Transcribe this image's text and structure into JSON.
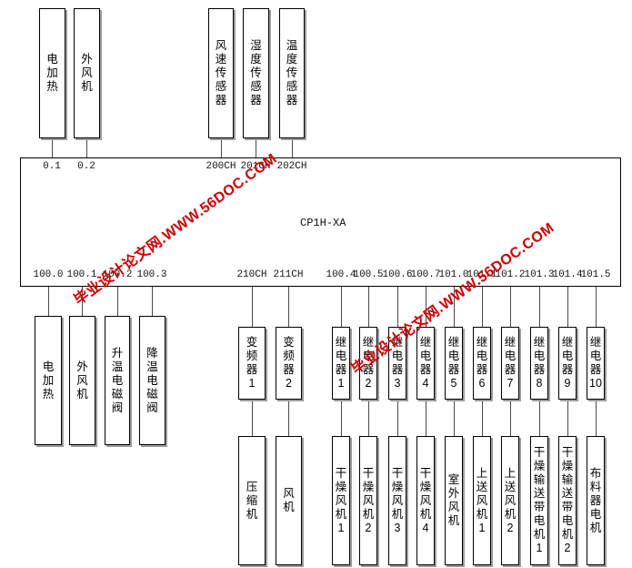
{
  "watermarks": [
    {
      "text": "毕业设计论文网.WWW.56DOC.COM"
    },
    {
      "text": "毕业设计论文网.WWW.56DOC.COM"
    }
  ],
  "colors": {
    "watermark_red": "#cc0000"
  },
  "plc": {
    "model": "CP1H-XA"
  },
  "inputs": [
    {
      "label": "电加热",
      "port": "0.1"
    },
    {
      "label": "外风机",
      "port": "0.2"
    },
    {
      "label": "风速传感器",
      "port": "200CH"
    },
    {
      "label": "湿度传感器",
      "port": "201CH"
    },
    {
      "label": "温度传感器",
      "port": "202CH"
    }
  ],
  "outputs": [
    {
      "label": "电加热",
      "port": "100.0"
    },
    {
      "label": "外风机",
      "port": "100.1"
    },
    {
      "label": "升温电磁阀",
      "port": "100.2"
    },
    {
      "label": "降温电磁阀",
      "port": "100.3"
    }
  ],
  "chains": [
    {
      "port": "210CH",
      "driver": "变频器1",
      "load": "压缩机"
    },
    {
      "port": "211CH",
      "driver": "变频器2",
      "load": "风机"
    },
    {
      "port": "100.4",
      "driver": "继电器1",
      "load": "干燥风机1"
    },
    {
      "port": "100.5",
      "driver": "继电器2",
      "load": "干燥风机2"
    },
    {
      "port": "100.6",
      "driver": "继电器3",
      "load": "干燥风机3"
    },
    {
      "port": "100.7",
      "driver": "继电器4",
      "load": "干燥风机4"
    },
    {
      "port": "101.0",
      "driver": "继电器5",
      "load": "室外风机"
    },
    {
      "port": "101.1",
      "driver": "继电器6",
      "load": "上送风机1"
    },
    {
      "port": "101.2",
      "driver": "继电器7",
      "load": "上送风机2"
    },
    {
      "port": "101.3",
      "driver": "继电器8",
      "load": "干燥输送带电机1"
    },
    {
      "port": "101.4",
      "driver": "继电器9",
      "load": "干燥输送带电机2"
    },
    {
      "port": "101.5",
      "driver": "继电器10",
      "load": "布料器电机"
    }
  ]
}
